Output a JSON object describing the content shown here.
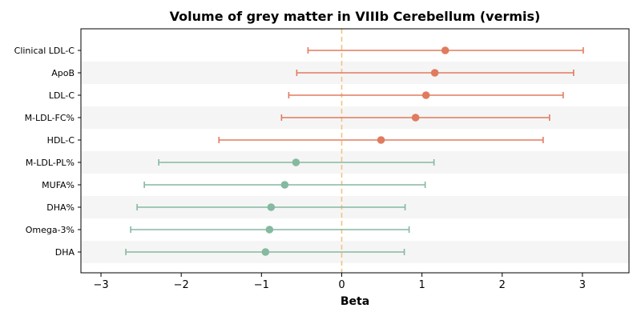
{
  "chart_data": {
    "type": "forest",
    "title": "Volume of grey matter in VIIIb Cerebellum (vermis)",
    "xlabel": "Beta",
    "xlim": [
      -3.25,
      3.58
    ],
    "xticks": [
      -3,
      -2,
      -1,
      0,
      1,
      2,
      3
    ],
    "xtick_labels": [
      "−3",
      "−2",
      "−1",
      "0",
      "1",
      "2",
      "3"
    ],
    "reference_line": 0,
    "grid": false,
    "row_shading": "alternating",
    "colors": {
      "positive": "#e07b5e",
      "negative": "#85b9a0",
      "reference_line": "#f4c27f",
      "shading": "#f5f5f5"
    },
    "rows": [
      {
        "label": "Clinical LDL-C",
        "beta": 1.29,
        "lower": -0.42,
        "upper": 3.01
      },
      {
        "label": "ApoB",
        "beta": 1.16,
        "lower": -0.56,
        "upper": 2.89
      },
      {
        "label": "LDL-C",
        "beta": 1.05,
        "lower": -0.66,
        "upper": 2.76
      },
      {
        "label": "M-LDL-FC%",
        "beta": 0.92,
        "lower": -0.75,
        "upper": 2.59
      },
      {
        "label": "HDL-C",
        "beta": 0.49,
        "lower": -1.53,
        "upper": 2.51
      },
      {
        "label": "M-LDL-PL%",
        "beta": -0.57,
        "lower": -2.28,
        "upper": 1.15
      },
      {
        "label": "MUFA%",
        "beta": -0.71,
        "lower": -2.46,
        "upper": 1.04
      },
      {
        "label": "DHA%",
        "beta": -0.88,
        "lower": -2.55,
        "upper": 0.79
      },
      {
        "label": "Omega-3%",
        "beta": -0.9,
        "lower": -2.63,
        "upper": 0.84
      },
      {
        "label": "DHA",
        "beta": -0.95,
        "lower": -2.69,
        "upper": 0.78
      }
    ]
  }
}
